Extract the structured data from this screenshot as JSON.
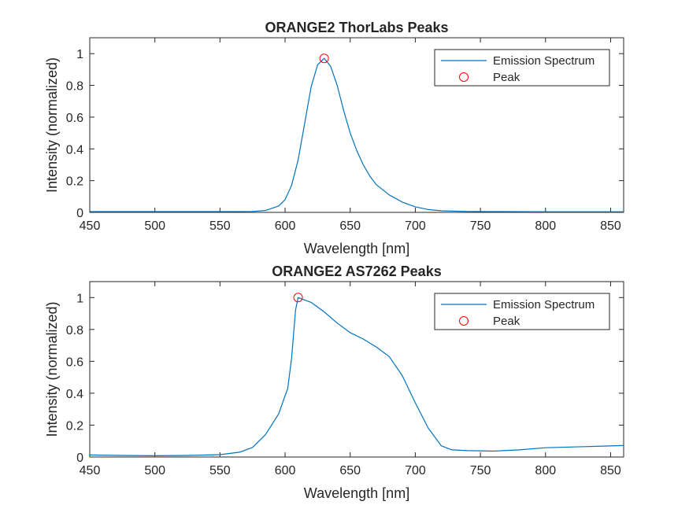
{
  "chart_data": [
    {
      "type": "line",
      "title": "ORANGE2 ThorLabs Peaks",
      "xlabel": "Wavelength [nm]",
      "ylabel": "Intensity (normalized)",
      "xlim": [
        450,
        860
      ],
      "ylim": [
        0,
        1.1
      ],
      "xticks": [
        450,
        500,
        550,
        600,
        650,
        700,
        750,
        800,
        850
      ],
      "yticks": [
        0,
        0.2,
        0.4,
        0.6,
        0.8,
        1
      ],
      "ytick_labels": [
        "0",
        "0.2",
        "0.4",
        "0.6",
        "0.8",
        "1"
      ],
      "legend_position": "top-right",
      "colors": {
        "line": "#0072BD",
        "peak": "#FF0000"
      },
      "series": [
        {
          "name": "Emission Spectrum",
          "x": [
            450,
            500,
            550,
            575,
            585,
            595,
            600,
            605,
            610,
            615,
            620,
            625,
            630,
            635,
            640,
            645,
            650,
            655,
            660,
            665,
            670,
            680,
            690,
            700,
            710,
            720,
            740,
            760,
            800,
            860
          ],
          "y": [
            0.005,
            0.005,
            0.005,
            0.006,
            0.012,
            0.04,
            0.08,
            0.17,
            0.33,
            0.56,
            0.79,
            0.93,
            0.97,
            0.92,
            0.8,
            0.64,
            0.5,
            0.39,
            0.3,
            0.23,
            0.175,
            0.11,
            0.065,
            0.035,
            0.018,
            0.01,
            0.006,
            0.005,
            0.004,
            0.004
          ]
        },
        {
          "name": "Peak",
          "x": [
            630
          ],
          "y": [
            0.97
          ]
        }
      ]
    },
    {
      "type": "line",
      "title": "ORANGE2 AS7262 Peaks",
      "xlabel": "Wavelength [nm]",
      "ylabel": "Intensity (normalized)",
      "xlim": [
        450,
        860
      ],
      "ylim": [
        0,
        1.1
      ],
      "xticks": [
        450,
        500,
        550,
        600,
        650,
        700,
        750,
        800,
        850
      ],
      "yticks": [
        0,
        0.2,
        0.4,
        0.6,
        0.8,
        1
      ],
      "ytick_labels": [
        "0",
        "0.2",
        "0.4",
        "0.6",
        "0.8",
        "1"
      ],
      "legend_position": "top-right",
      "colors": {
        "line": "#0072BD",
        "peak": "#FF0000"
      },
      "series": [
        {
          "name": "Emission Spectrum",
          "x": [
            450,
            475,
            500,
            525,
            550,
            565,
            575,
            585,
            595,
            602,
            605,
            608,
            610,
            620,
            630,
            640,
            650,
            660,
            670,
            680,
            690,
            700,
            710,
            720,
            728,
            740,
            760,
            780,
            800,
            830,
            860
          ],
          "y": [
            0.013,
            0.01,
            0.008,
            0.01,
            0.015,
            0.03,
            0.06,
            0.14,
            0.27,
            0.43,
            0.62,
            0.92,
            1.0,
            0.97,
            0.91,
            0.84,
            0.78,
            0.74,
            0.69,
            0.63,
            0.51,
            0.34,
            0.18,
            0.07,
            0.045,
            0.04,
            0.037,
            0.045,
            0.058,
            0.065,
            0.072
          ]
        },
        {
          "name": "Peak",
          "x": [
            610
          ],
          "y": [
            1.0
          ]
        }
      ]
    }
  ]
}
